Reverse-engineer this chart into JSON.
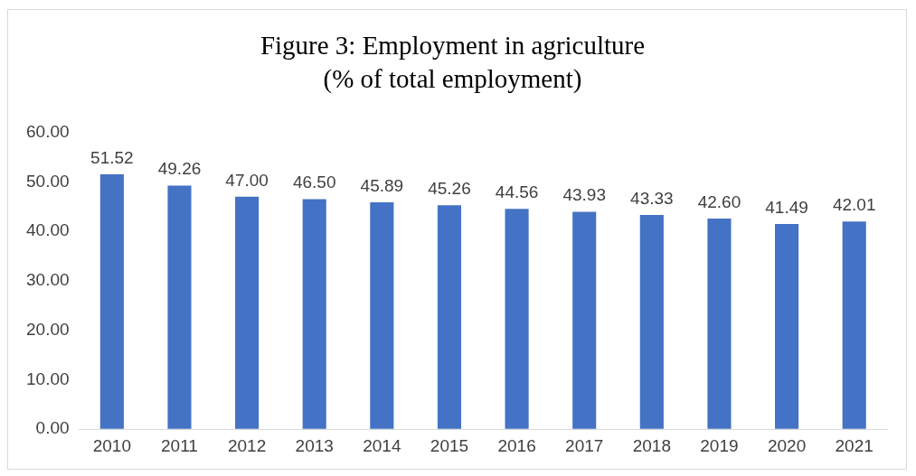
{
  "chart_data": {
    "type": "bar",
    "title": "Figure 3: Employment in agriculture",
    "subtitle": "(% of total employment)",
    "categories": [
      "2010",
      "2011",
      "2012",
      "2013",
      "2014",
      "2015",
      "2016",
      "2017",
      "2018",
      "2019",
      "2020",
      "2021"
    ],
    "values": [
      51.52,
      49.26,
      47.0,
      46.5,
      45.89,
      45.26,
      44.56,
      43.93,
      43.33,
      42.6,
      41.49,
      42.01
    ],
    "value_labels": [
      "51.52",
      "49.26",
      "47.00",
      "46.50",
      "45.89",
      "45.26",
      "44.56",
      "43.93",
      "43.33",
      "42.60",
      "41.49",
      "42.01"
    ],
    "color": "#4472c4",
    "ylim": [
      0,
      60
    ],
    "yticks": [
      {
        "value": 0,
        "label": "0.00"
      },
      {
        "value": 10,
        "label": "10.00"
      },
      {
        "value": 20,
        "label": "20.00"
      },
      {
        "value": 30,
        "label": "30.00"
      },
      {
        "value": 40,
        "label": "40.00"
      },
      {
        "value": 50,
        "label": "50.00"
      },
      {
        "value": 60,
        "label": "60.00"
      }
    ],
    "grid": false,
    "legend": false
  }
}
